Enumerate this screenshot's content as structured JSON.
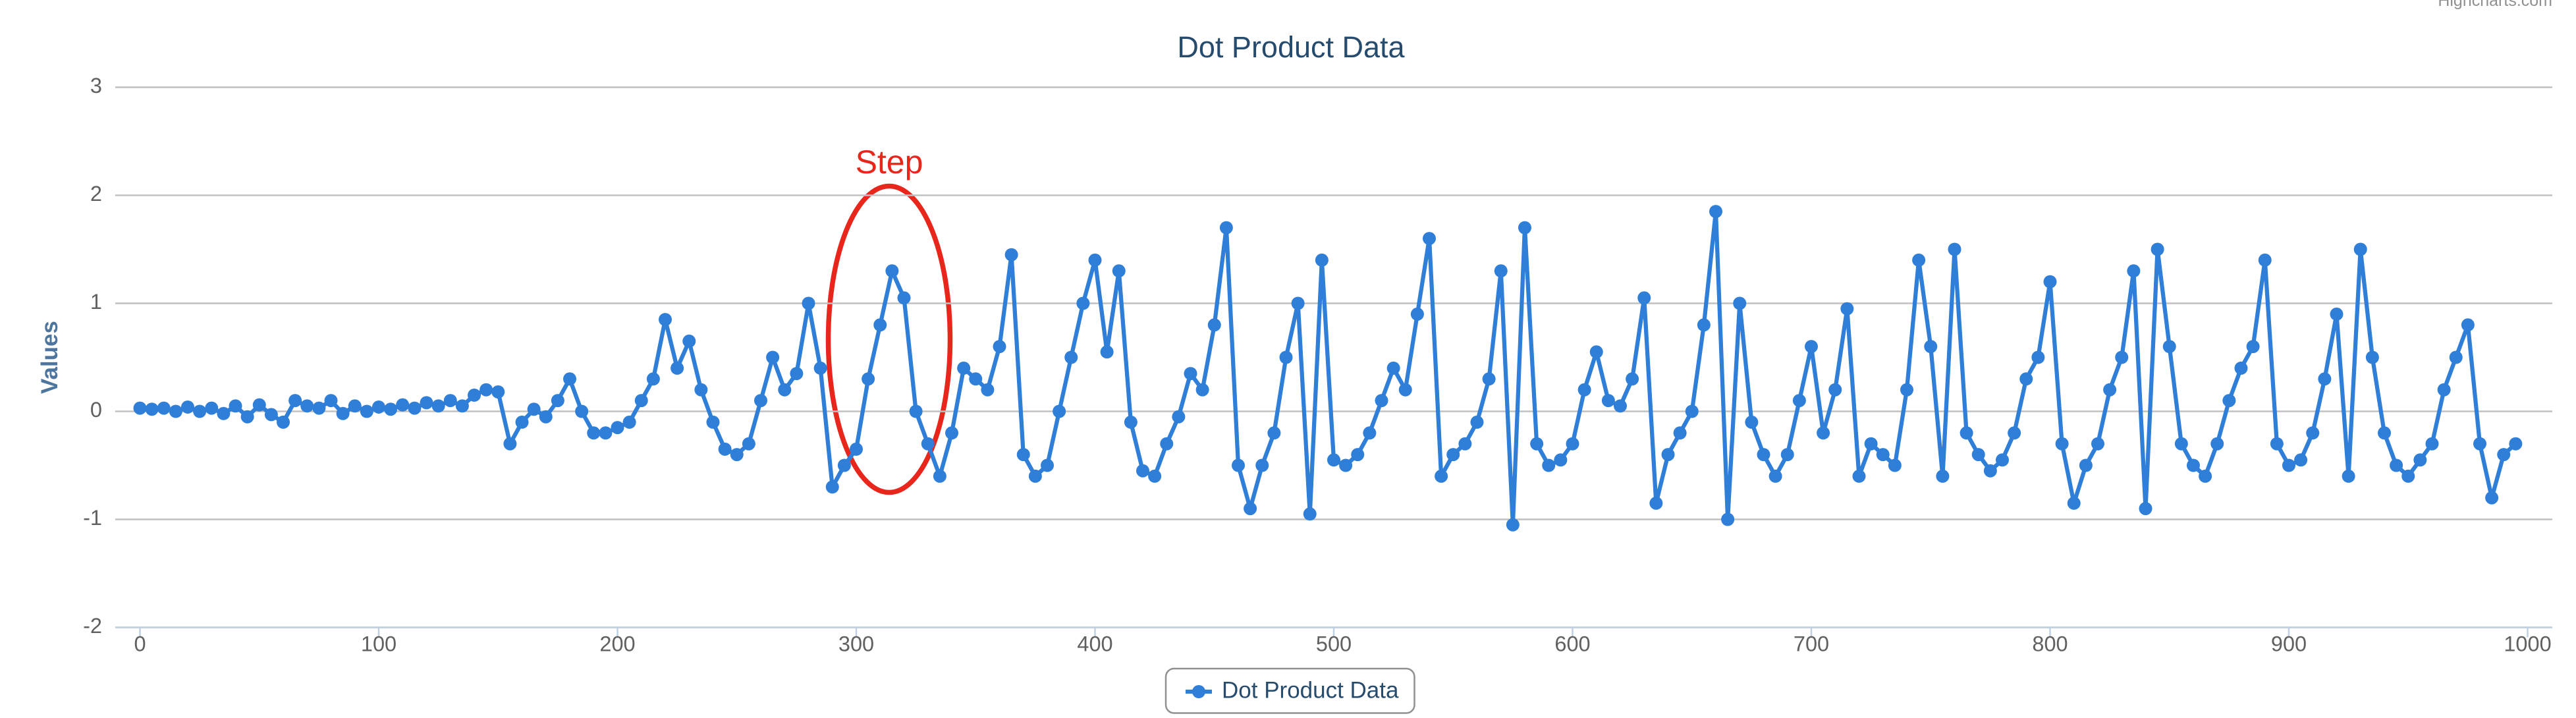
{
  "chart_data": {
    "type": "line",
    "title": "Dot Product Data",
    "credits": "Highcharts.com",
    "y_label": "Values",
    "annotations": [
      {
        "text": "Step"
      }
    ],
    "xlim": [
      0,
      1000
    ],
    "xticks": [
      0,
      100,
      200,
      300,
      400,
      500,
      600,
      700,
      800,
      900,
      1000
    ],
    "ylim": [
      -2,
      3
    ],
    "yticks": [
      -2,
      -1,
      0,
      1,
      2,
      3
    ],
    "grid": true,
    "legend": "bottom",
    "x": [
      0,
      5,
      10,
      15,
      20,
      25,
      30,
      35,
      40,
      45,
      50,
      55,
      60,
      65,
      70,
      75,
      80,
      85,
      90,
      95,
      100,
      105,
      110,
      115,
      120,
      125,
      130,
      135,
      140,
      145,
      150,
      155,
      160,
      165,
      170,
      175,
      180,
      185,
      190,
      195,
      200,
      205,
      210,
      215,
      220,
      225,
      230,
      235,
      240,
      245,
      250,
      255,
      260,
      265,
      270,
      275,
      280,
      285,
      290,
      295,
      300,
      305,
      310,
      315,
      320,
      325,
      330,
      335,
      340,
      345,
      350,
      355,
      360,
      365,
      370,
      375,
      380,
      385,
      390,
      395,
      400,
      405,
      410,
      415,
      420,
      425,
      430,
      435,
      440,
      445,
      450,
      455,
      460,
      465,
      470,
      475,
      480,
      485,
      490,
      495,
      500,
      505,
      510,
      515,
      520,
      525,
      530,
      535,
      540,
      545,
      550,
      555,
      560,
      565,
      570,
      575,
      580,
      585,
      590,
      595,
      600,
      605,
      610,
      615,
      620,
      625,
      630,
      635,
      640,
      645,
      650,
      655,
      660,
      665,
      670,
      675,
      680,
      685,
      690,
      695,
      700,
      705,
      710,
      715,
      720,
      725,
      730,
      735,
      740,
      745,
      750,
      755,
      760,
      765,
      770,
      775,
      780,
      785,
      790,
      795,
      800,
      805,
      810,
      815,
      820,
      825,
      830,
      835,
      840,
      845,
      850,
      855,
      860,
      865,
      870,
      875,
      880,
      885,
      890,
      895,
      900,
      905,
      910,
      915,
      920,
      925,
      930,
      935,
      940,
      945,
      950,
      955,
      960,
      965,
      970,
      975,
      980,
      985,
      990,
      995
    ],
    "series": [
      {
        "name": "Dot Product Data",
        "color": "#2f7ed8",
        "values": [
          0.03,
          0.02,
          0.03,
          0.0,
          0.04,
          0.0,
          0.03,
          -0.02,
          0.05,
          -0.05,
          0.06,
          -0.03,
          -0.1,
          0.1,
          0.05,
          0.03,
          0.1,
          -0.02,
          0.05,
          0.0,
          0.04,
          0.02,
          0.06,
          0.03,
          0.08,
          0.05,
          0.1,
          0.05,
          0.15,
          0.2,
          0.18,
          -0.3,
          -0.1,
          0.02,
          -0.05,
          0.1,
          0.3,
          0.0,
          -0.2,
          -0.2,
          -0.15,
          -0.1,
          0.1,
          0.3,
          0.85,
          0.4,
          0.65,
          0.2,
          -0.1,
          -0.35,
          -0.4,
          -0.3,
          0.1,
          0.5,
          0.2,
          0.35,
          1.0,
          0.4,
          -0.7,
          -0.5,
          -0.35,
          0.3,
          0.8,
          1.3,
          1.05,
          0.0,
          -0.3,
          -0.6,
          -0.2,
          0.4,
          0.3,
          0.2,
          0.6,
          1.45,
          -0.4,
          -0.6,
          -0.5,
          0.0,
          0.5,
          1.0,
          1.4,
          0.55,
          1.3,
          -0.1,
          -0.55,
          -0.6,
          -0.3,
          -0.05,
          0.35,
          0.2,
          0.8,
          1.7,
          -0.5,
          -0.9,
          -0.5,
          -0.2,
          0.5,
          1.0,
          -0.95,
          1.4,
          -0.45,
          -0.5,
          -0.4,
          -0.2,
          0.1,
          0.4,
          0.2,
          0.9,
          1.6,
          -0.6,
          -0.4,
          -0.3,
          -0.1,
          0.3,
          1.3,
          -1.05,
          1.7,
          -0.3,
          -0.5,
          -0.45,
          -0.3,
          0.2,
          0.55,
          0.1,
          0.05,
          0.3,
          1.05,
          -0.85,
          -0.4,
          -0.2,
          0.0,
          0.8,
          1.85,
          -1.0,
          1.0,
          -0.1,
          -0.4,
          -0.6,
          -0.4,
          0.1,
          0.6,
          -0.2,
          0.2,
          0.95,
          -0.6,
          -0.3,
          -0.4,
          -0.5,
          0.2,
          1.4,
          0.6,
          -0.6,
          1.5,
          -0.2,
          -0.4,
          -0.55,
          -0.45,
          -0.2,
          0.3,
          0.5,
          1.2,
          -0.3,
          -0.85,
          -0.5,
          -0.3,
          0.2,
          0.5,
          1.3,
          -0.9,
          1.5,
          0.6,
          -0.3,
          -0.5,
          -0.6,
          -0.3,
          0.1,
          0.4,
          0.6,
          1.4,
          -0.3,
          -0.5,
          -0.45,
          -0.2,
          0.3,
          0.9,
          -0.6,
          1.5,
          0.5,
          -0.2,
          -0.5,
          -0.6,
          -0.45,
          -0.3,
          0.2,
          0.5,
          0.8,
          -0.3,
          -0.8,
          -0.4,
          -0.3
        ]
      }
    ]
  }
}
